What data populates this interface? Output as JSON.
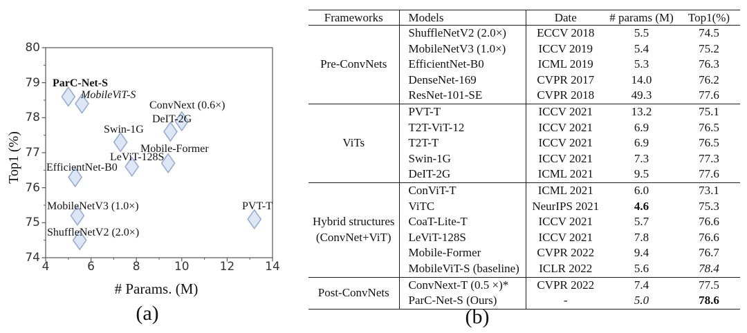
{
  "chart_data": [
    {
      "type": "scatter",
      "panel": "(a)",
      "title": "",
      "xlabel": "# Params. (M)",
      "ylabel": "Top1 (%)",
      "xlim": [
        4,
        14
      ],
      "ylim": [
        74,
        80
      ],
      "xticks": [
        4,
        6,
        8,
        10,
        12,
        14
      ],
      "yticks": [
        74,
        75,
        76,
        77,
        78,
        79,
        80
      ],
      "xticks_minor": [
        5,
        7,
        9,
        11,
        13
      ],
      "yticks_minor": [
        74.5,
        75.5,
        76.5,
        77.5,
        78.5,
        79.5
      ],
      "grid": false,
      "legend": "none",
      "marker": "diamond",
      "marker_fill": "#dce6f5",
      "marker_stroke": "#93a9cf",
      "axis_color": "#555555",
      "points": [
        {
          "label": "ParC-Net-S",
          "x": 5.0,
          "y": 78.6,
          "emphasis": "bold"
        },
        {
          "label": "MobileViT-S",
          "x": 5.6,
          "y": 78.4,
          "emphasis": "italic"
        },
        {
          "label": "ConvNext (0.6×)",
          "x": 10.0,
          "y": 77.9,
          "emphasis": ""
        },
        {
          "label": "DeIT-2G",
          "x": 9.5,
          "y": 77.6,
          "emphasis": ""
        },
        {
          "label": "Swin-1G",
          "x": 7.3,
          "y": 77.3,
          "emphasis": ""
        },
        {
          "label": "Mobile-Former",
          "x": 9.4,
          "y": 76.7,
          "emphasis": ""
        },
        {
          "label": "LeViT-128S",
          "x": 7.8,
          "y": 76.6,
          "emphasis": ""
        },
        {
          "label": "EfficientNet-B0",
          "x": 5.3,
          "y": 76.3,
          "emphasis": ""
        },
        {
          "label": "MobileNetV3 (1.0×)",
          "x": 5.4,
          "y": 75.2,
          "emphasis": ""
        },
        {
          "label": "PVT-T",
          "x": 13.2,
          "y": 75.1,
          "emphasis": ""
        },
        {
          "label": "ShuffleNetV2 (2.0×)",
          "x": 5.5,
          "y": 74.5,
          "emphasis": ""
        }
      ]
    },
    {
      "type": "table",
      "panel": "(b)",
      "headers": [
        "Frameworks",
        "Models",
        "Date",
        "# params (M)",
        "Top1(%)"
      ],
      "groups": [
        {
          "framework": "Pre-ConvNets",
          "rows": [
            {
              "model": "ShuffleNetV2 (2.0×)",
              "date": "ECCV 2018",
              "params": "5.5",
              "top1": "74.5"
            },
            {
              "model": "MobileNetV3 (1.0×)",
              "date": "ICCV 2019",
              "params": "5.4",
              "top1": "75.2"
            },
            {
              "model": "EfficientNet-B0",
              "date": "ICML 2019",
              "params": "5.3",
              "top1": "76.3"
            },
            {
              "model": "DenseNet-169",
              "date": "CVPR 2017",
              "params": "14.0",
              "top1": "76.2"
            },
            {
              "model": "ResNet-101-SE",
              "date": "CVPR 2018",
              "params": "49.3",
              "top1": "77.6"
            }
          ]
        },
        {
          "framework": "ViTs",
          "rows": [
            {
              "model": "PVT-T",
              "date": "ICCV 2021",
              "params": "13.2",
              "top1": "75.1"
            },
            {
              "model": "T2T-ViT-12",
              "date": "ICCV 2021",
              "params": "6.9",
              "top1": "76.5"
            },
            {
              "model": "T2T-T",
              "date": "ICCV 2021",
              "params": "6.9",
              "top1": "76.5"
            },
            {
              "model": "Swin-1G",
              "date": "ICCV 2021",
              "params": "7.3",
              "top1": "77.3"
            },
            {
              "model": "DeIT-2G",
              "date": "ICML 2021",
              "params": "9.5",
              "top1": "77.6"
            }
          ]
        },
        {
          "framework": "Hybrid structures\n(ConvNet+ViT)",
          "rows": [
            {
              "model": "ConViT-T",
              "date": "ICML 2021",
              "params": "6.0",
              "top1": "73.1"
            },
            {
              "model": "ViTC",
              "date": "NeurIPS 2021",
              "params": "4.6",
              "params_style": "bold",
              "top1": "75.3"
            },
            {
              "model": "CoaT-Lite-T",
              "date": "ICCV 2021",
              "params": "5.7",
              "top1": "76.6"
            },
            {
              "model": "LeViT-128S",
              "date": "ICCV 2021",
              "params": "7.8",
              "top1": "76.6"
            },
            {
              "model": "Mobile-Former",
              "date": "CVPR 2022",
              "params": "9.4",
              "top1": "76.7"
            },
            {
              "model": "MobileViT-S (baseline)",
              "date": "ICLR 2022",
              "params": "5.6",
              "top1": "78.4",
              "top1_style": "italic"
            }
          ]
        },
        {
          "framework": "Post-ConvNets",
          "rows": [
            {
              "model": "ConvNext-T (0.5 ×)*",
              "date": "CVPR 2022",
              "params": "7.4",
              "top1": "77.5"
            },
            {
              "model": "ParC-Net-S  (Ours)",
              "date": "-",
              "params": "5.0",
              "params_style": "italic",
              "top1": "78.6",
              "top1_style": "bold"
            }
          ]
        }
      ]
    }
  ]
}
